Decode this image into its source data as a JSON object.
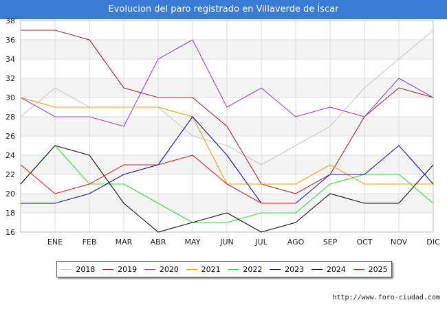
{
  "chart_data": {
    "type": "line",
    "title": "Evolucion del paro registrado en Villaverde de Íscar",
    "categories": [
      "",
      "ENE",
      "FEB",
      "MAR",
      "ABR",
      "MAY",
      "JUN",
      "JUL",
      "AGO",
      "SEP",
      "OCT",
      "NOV",
      "DIC"
    ],
    "ylim": [
      16,
      38
    ],
    "yticks": [
      16,
      18,
      20,
      22,
      24,
      26,
      28,
      30,
      32,
      34,
      36,
      38
    ],
    "grid": true,
    "legend_position": "bottom",
    "series": [
      {
        "name": "2018",
        "color": "#c8c8c8",
        "values": [
          28,
          31,
          29,
          29,
          29,
          26,
          25,
          23,
          25,
          27,
          31,
          34,
          37
        ]
      },
      {
        "name": "2019",
        "color": "#a52a2a",
        "values": [
          37,
          37,
          36,
          31,
          30,
          30,
          27,
          21,
          20,
          22,
          28,
          31,
          30
        ]
      },
      {
        "name": "2020",
        "color": "#a040e0",
        "values": [
          30,
          28,
          28,
          27,
          34,
          36,
          29,
          31,
          28,
          29,
          28,
          32,
          30
        ]
      },
      {
        "name": "2021",
        "color": "#f0a000",
        "values": [
          30,
          29,
          29,
          29,
          29,
          28,
          21,
          21,
          21,
          23,
          21,
          21,
          21
        ]
      },
      {
        "name": "2022",
        "color": "#33dd33",
        "values": [
          21,
          25,
          21,
          21,
          19,
          17,
          17,
          18,
          18,
          21,
          22,
          22,
          19
        ]
      },
      {
        "name": "2023",
        "color": "#1010cc",
        "values": [
          19,
          19,
          20,
          22,
          23,
          28,
          24,
          19,
          19,
          22,
          22,
          25,
          21
        ]
      },
      {
        "name": "2024",
        "color": "#111111",
        "values": [
          21,
          25,
          24,
          19,
          16,
          17,
          18,
          16,
          17,
          20,
          19,
          19,
          23
        ]
      },
      {
        "name": "2025",
        "color": "#ee2222",
        "values": [
          23,
          20,
          21,
          23,
          23,
          24,
          21,
          19,
          19,
          null,
          null,
          null,
          null
        ]
      }
    ]
  },
  "source": "http://www.foro-ciudad.com"
}
